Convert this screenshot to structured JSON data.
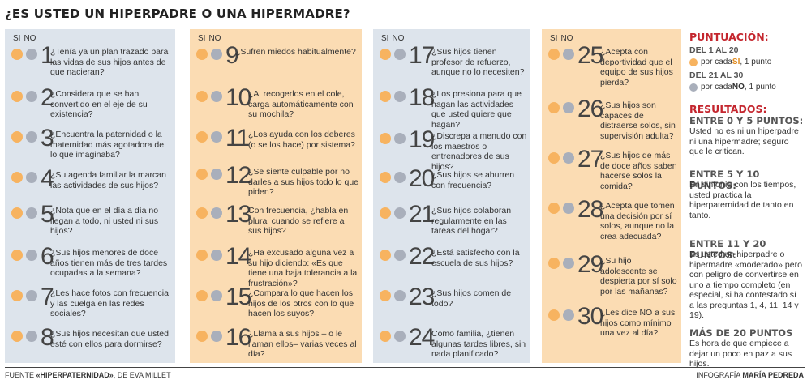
{
  "title": "¿ES USTED UN HIPERPADRE O UNA HIPERMADRE?",
  "header": {
    "si": "SI",
    "no": "NO"
  },
  "columns": [
    {
      "questions": [
        {
          "n": "1",
          "t": "¿Tenía ya un plan trazado para las vidas de sus hijos antes de que nacieran?"
        },
        {
          "n": "2",
          "t": "¿Considera que se han convertido en el eje de su existencia?"
        },
        {
          "n": "3",
          "t": "¿Encuentra la paternidad o la maternidad más agotadora de lo que imaginaba?"
        },
        {
          "n": "4",
          "t": "¿Su agenda familiar la marcan las actividades de sus hijos?"
        },
        {
          "n": "5",
          "t": "¿Nota que en el día a día no llegan a todo, ni usted ni sus hijos?"
        },
        {
          "n": "6",
          "t": "¿Sus hijos menores de doce años tienen más de tres tardes ocupadas a la semana?"
        },
        {
          "n": "7",
          "t": "¿Les hace fotos con frecuencia y las cuelga en las redes sociales?"
        },
        {
          "n": "8",
          "t": "¿Sus hijos necesitan que usted esté con ellos para dormirse?"
        }
      ]
    },
    {
      "questions": [
        {
          "n": "9",
          "t": "¿Sufren miedos habitualmente?"
        },
        {
          "n": "10",
          "t": "¿Al recogerlos en el cole, carga automáticamente con su mochila?"
        },
        {
          "n": "11",
          "t": "¿Los ayuda con los deberes (o se los hace) por sistema?"
        },
        {
          "n": "12",
          "t": "¿Se siente culpable por no darles a sus hijos todo lo que piden?"
        },
        {
          "n": "13",
          "t": "Con frecuencia, ¿habla en plural cuando se refiere a sus hijos?"
        },
        {
          "n": "14",
          "t": "¿Ha excusado alguna vez a su hijo diciendo: «Es que tiene una baja tolerancia a la frustración»?"
        },
        {
          "n": "15",
          "t": "¿Compara lo que hacen los hijos de los otros con lo que hacen los suyos?"
        },
        {
          "n": "16",
          "t": "¿Llama a sus hijos – o le llaman ellos– varias veces al día?"
        }
      ]
    },
    {
      "questions": [
        {
          "n": "17",
          "t": "¿Sus hijos tienen profesor de refuerzo, aunque no lo necesiten?"
        },
        {
          "n": "18",
          "t": "¿Los presiona para que hagan las actividades que usted quiere que hagan?"
        },
        {
          "n": "19",
          "t": "¿Discrepa a menudo con los maestros o entrenadores de sus hijos?"
        },
        {
          "n": "20",
          "t": "¿Sus hijos se aburren con frecuencia?"
        },
        {
          "n": "21",
          "t": "¿Sus hijos colaboran regularmente en las tareas del hogar?"
        },
        {
          "n": "22",
          "t": "¿Está satisfecho con la escuela de sus hijos?"
        },
        {
          "n": "23",
          "t": "¿Sus hijos comen de todo?"
        },
        {
          "n": "24",
          "t": "Como familia, ¿tienen algunas tardes libres, sin nada planificado?"
        }
      ]
    },
    {
      "questions": [
        {
          "n": "25",
          "t": "¿Acepta con deportividad que el equipo de sus hijos pierda?"
        },
        {
          "n": "26",
          "t": "¿Sus hijos son capaces de distraerse solos, sin supervisión adulta?"
        },
        {
          "n": "27",
          "t": "¿Sus hijos de más de doce años saben hacerse solos la comida?"
        },
        {
          "n": "28",
          "t": "¿Acepta que tomen una decisión por sí solos, aunque no la crea adecuada?"
        },
        {
          "n": "29",
          "t": "¿Su hijo adolescente se despierta por sí solo por las mañanas?"
        },
        {
          "n": "30",
          "t": "¿Les dice NO a sus hijos como mínimo una vez al día?"
        }
      ]
    }
  ],
  "scoring": {
    "heading": "PUNTUACIÓN:",
    "range1": "DEL 1 AL 20",
    "rule1_pre": "por cada ",
    "rule1_key": "SI",
    "rule1_post": ", 1 punto",
    "range2": "DEL 21 AL 30",
    "rule2_pre": "por cada ",
    "rule2_key": "NO",
    "rule2_post": ", 1 punto"
  },
  "results": {
    "heading": "RESULTADOS:",
    "items": [
      {
        "h": "ENTRE 0 Y 5 PUNTOS:",
        "t": "Usted no es ni un hiperpadre ni una hipermadre; seguro que le critican."
      },
      {
        "h": "ENTRE 5 Y 10 PUNTOS:",
        "t": "En sintonía con los tiempos, usted practica la hiperpaternidad de tanto en tanto."
      },
      {
        "h": "ENTRE 11 Y 20 PUNTOS:",
        "t": "Es usted un hiperpadre o hipermadre «moderado» pero con peligro de convertirse en uno a tiempo completo (en especial, si ha contestado sí a las preguntas 1, 4, 11, 14 y 19)."
      },
      {
        "h": "MÁS DE 20 PUNTOS",
        "t": "Es hora de que empiece a dejar un poco en paz a sus hijos."
      }
    ]
  },
  "footer": {
    "source_pre": "FUENTE ",
    "source_book": "«HIPERPATERNIDAD»",
    "source_post": ", DE EVA MILLET",
    "credit_pre": "INFOGRAFÍA ",
    "credit_name": "MARÍA PEDREDA"
  },
  "colors": {
    "si": "#f7b360",
    "no": "#a9afbb",
    "blue_bg": "#dde4ec",
    "orange_bg": "#fbdcb3",
    "accent": "#c4262e"
  }
}
